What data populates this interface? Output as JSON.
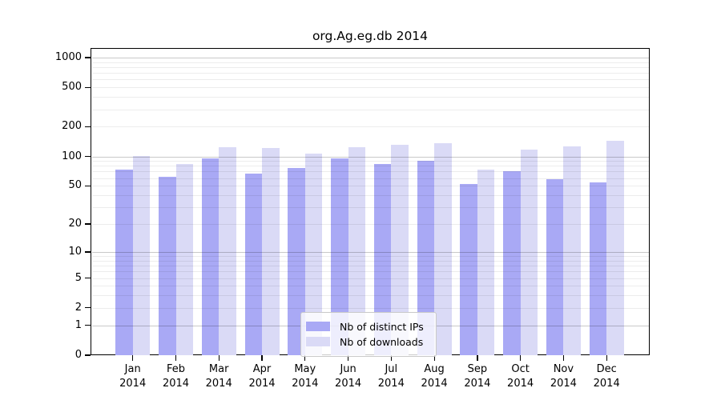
{
  "chart_data": {
    "type": "bar",
    "title": "org.Ag.eg.db 2014",
    "categories": [
      "Jan",
      "Feb",
      "Mar",
      "Apr",
      "May",
      "Jun",
      "Jul",
      "Aug",
      "Sep",
      "Oct",
      "Nov",
      "Dec"
    ],
    "x_tick_second_line": "2014",
    "series": [
      {
        "name": "Nb of distinct IPs",
        "color": "#a9a9f5",
        "values": [
          74,
          62,
          96,
          67,
          76,
          96,
          84,
          91,
          52,
          70,
          58,
          54
        ]
      },
      {
        "name": "Nb of downloads",
        "color": "#dadaf6",
        "values": [
          101,
          84,
          124,
          121,
          106,
          123,
          131,
          137,
          74,
          118,
          126,
          143
        ]
      }
    ],
    "y_axis": {
      "scale": "log1p",
      "ticks": [
        1000,
        500,
        200,
        100,
        50,
        20,
        10,
        5,
        2,
        1,
        0
      ],
      "major_gridlines": [
        1,
        10,
        100,
        1000
      ],
      "minor_gridline_pattern": "2-9 per decade",
      "ylim": [
        0,
        1000
      ]
    },
    "grid": true,
    "legend_position": "bottom-center-inside"
  },
  "colors": {
    "background": "#ffffff",
    "bar_distinct_ips": "#a9a9f5",
    "bar_downloads": "#dadaf6",
    "major_grid": "#c8c8c8",
    "minor_grid": "#ececec",
    "axis_text": "#000000"
  }
}
